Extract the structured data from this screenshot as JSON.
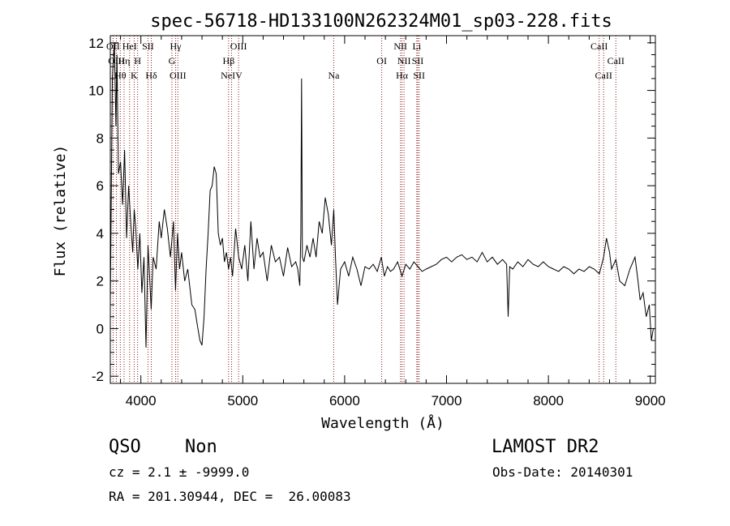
{
  "chart_data": {
    "type": "line",
    "title": "spec-56718-HD133100N262324M01_sp03-228.fits",
    "xlabel": "Wavelength (Å)",
    "ylabel": "Flux (relative)",
    "xlim": [
      3700,
      9050
    ],
    "ylim": [
      -2.3,
      12.3
    ],
    "x_ticks": [
      4000,
      5000,
      6000,
      7000,
      8000,
      9000
    ],
    "y_ticks": [
      -2,
      0,
      2,
      4,
      6,
      8,
      10,
      12
    ],
    "spectrum_color": "#000000",
    "line_marker_color": "#8b1a1a",
    "spectrum": {
      "x": [
        3700,
        3720,
        3740,
        3755,
        3765,
        3780,
        3800,
        3820,
        3840,
        3860,
        3880,
        3900,
        3920,
        3935,
        3950,
        3970,
        3990,
        4010,
        4030,
        4050,
        4070,
        4090,
        4101,
        4120,
        4150,
        4180,
        4200,
        4230,
        4260,
        4290,
        4320,
        4340,
        4360,
        4380,
        4400,
        4430,
        4460,
        4500,
        4530,
        4560,
        4580,
        4600,
        4620,
        4640,
        4660,
        4680,
        4700,
        4720,
        4740,
        4760,
        4780,
        4800,
        4820,
        4840,
        4861,
        4880,
        4900,
        4930,
        4960,
        4990,
        5020,
        5050,
        5080,
        5110,
        5140,
        5170,
        5200,
        5240,
        5280,
        5320,
        5360,
        5400,
        5440,
        5480,
        5520,
        5540,
        5560,
        5570,
        5577,
        5585,
        5600,
        5630,
        5660,
        5690,
        5720,
        5750,
        5780,
        5810,
        5840,
        5870,
        5893,
        5910,
        5930,
        5960,
        6000,
        6040,
        6080,
        6120,
        6160,
        6200,
        6240,
        6280,
        6320,
        6360,
        6390,
        6420,
        6450,
        6480,
        6520,
        6563,
        6600,
        6640,
        6680,
        6720,
        6760,
        6800,
        6850,
        6900,
        6950,
        7000,
        7050,
        7100,
        7150,
        7200,
        7250,
        7300,
        7350,
        7400,
        7450,
        7500,
        7550,
        7590,
        7605,
        7620,
        7650,
        7700,
        7750,
        7800,
        7850,
        7900,
        7950,
        8000,
        8050,
        8100,
        8150,
        8200,
        8250,
        8300,
        8350,
        8400,
        8450,
        8500,
        8542,
        8570,
        8600,
        8620,
        8662,
        8700,
        8750,
        8800,
        8850,
        8880,
        8900,
        8930,
        8960,
        8990,
        9010,
        9030
      ],
      "y": [
        1.0,
        10.5,
        12.0,
        8.5,
        11.5,
        6.5,
        7.0,
        5.2,
        7.5,
        3.8,
        6.0,
        4.5,
        3.2,
        5.0,
        4.2,
        2.5,
        4.0,
        1.5,
        3.0,
        -0.8,
        3.5,
        1.8,
        0.8,
        3.0,
        2.5,
        4.5,
        3.8,
        5.0,
        4.2,
        3.0,
        4.5,
        1.6,
        4.0,
        2.5,
        3.2,
        2.0,
        2.5,
        1.0,
        0.8,
        0.0,
        -0.5,
        -0.7,
        0.5,
        2.5,
        4.0,
        5.8,
        6.0,
        6.8,
        6.5,
        4.0,
        3.5,
        3.8,
        2.8,
        3.2,
        2.5,
        3.0,
        2.2,
        4.2,
        3.0,
        2.5,
        3.5,
        2.0,
        4.5,
        2.5,
        3.8,
        3.0,
        3.2,
        2.0,
        3.5,
        2.8,
        3.0,
        2.2,
        3.4,
        2.6,
        2.8,
        2.5,
        1.8,
        4.0,
        10.5,
        3.0,
        2.8,
        3.5,
        3.0,
        3.8,
        3.0,
        4.5,
        4.0,
        5.5,
        4.8,
        3.5,
        5.0,
        3.0,
        1.0,
        2.5,
        2.8,
        2.2,
        3.0,
        2.5,
        1.8,
        2.6,
        2.5,
        2.7,
        2.4,
        3.0,
        2.2,
        2.6,
        2.4,
        2.5,
        2.8,
        2.2,
        2.7,
        2.5,
        2.8,
        2.6,
        2.4,
        2.5,
        2.6,
        2.7,
        2.9,
        3.0,
        2.8,
        3.0,
        3.1,
        2.9,
        3.0,
        2.8,
        3.2,
        2.8,
        3.0,
        2.7,
        2.9,
        2.7,
        0.5,
        2.6,
        2.5,
        2.8,
        2.6,
        2.9,
        2.7,
        2.6,
        2.8,
        2.6,
        2.5,
        2.4,
        2.6,
        2.5,
        2.3,
        2.5,
        2.4,
        2.6,
        2.5,
        2.3,
        3.0,
        3.8,
        3.2,
        2.5,
        2.9,
        2.0,
        1.8,
        2.5,
        3.0,
        2.0,
        1.2,
        1.5,
        0.5,
        1.0,
        -0.5,
        0.0
      ]
    },
    "line_markers": [
      {
        "label": "OII",
        "x": 3727,
        "row": 1
      },
      {
        "label": "OIII",
        "x": 3760,
        "row": 2
      },
      {
        "label": "Hθ",
        "x": 3798,
        "row": 3
      },
      {
        "label": "Hη",
        "x": 3835,
        "row": 2
      },
      {
        "label": "HeI",
        "x": 3889,
        "row": 1
      },
      {
        "label": "K",
        "x": 3934,
        "row": 3
      },
      {
        "label": "H",
        "x": 3968,
        "row": 2
      },
      {
        "label": "SII",
        "x": 4070,
        "row": 1
      },
      {
        "label": "Hδ",
        "x": 4102,
        "row": 3
      },
      {
        "label": "Hγ",
        "x": 4341,
        "row": 1
      },
      {
        "label": "G",
        "x": 4305,
        "row": 2
      },
      {
        "label": "OIII",
        "x": 4363,
        "row": 3
      },
      {
        "label": "Hβ",
        "x": 4861,
        "row": 2
      },
      {
        "label": "OIII",
        "x": 4959,
        "row": 1
      },
      {
        "label": "NeIV",
        "x": 4890,
        "row": 3
      },
      {
        "label": "Na",
        "x": 5893,
        "row": 3
      },
      {
        "label": "OI",
        "x": 6364,
        "row": 2
      },
      {
        "label": "NII",
        "x": 6548,
        "row": 1
      },
      {
        "label": "NII",
        "x": 6583,
        "row": 2
      },
      {
        "label": "Hα",
        "x": 6563,
        "row": 3
      },
      {
        "label": "Li",
        "x": 6708,
        "row": 1
      },
      {
        "label": "SII",
        "x": 6717,
        "row": 2
      },
      {
        "label": "SII",
        "x": 6731,
        "row": 3
      },
      {
        "label": "CaII",
        "x": 8498,
        "row": 1
      },
      {
        "label": "CaII",
        "x": 8542,
        "row": 3
      },
      {
        "label": "CaII",
        "x": 8662,
        "row": 2
      }
    ]
  },
  "info": {
    "class_label": "QSO",
    "subclass_label": "Non",
    "survey": "LAMOST DR2",
    "cz_line": "cz = 2.1 ± -9999.0",
    "obs_date": "Obs-Date: 20140301",
    "coords": "RA = 201.30944, DEC =  26.00083"
  }
}
